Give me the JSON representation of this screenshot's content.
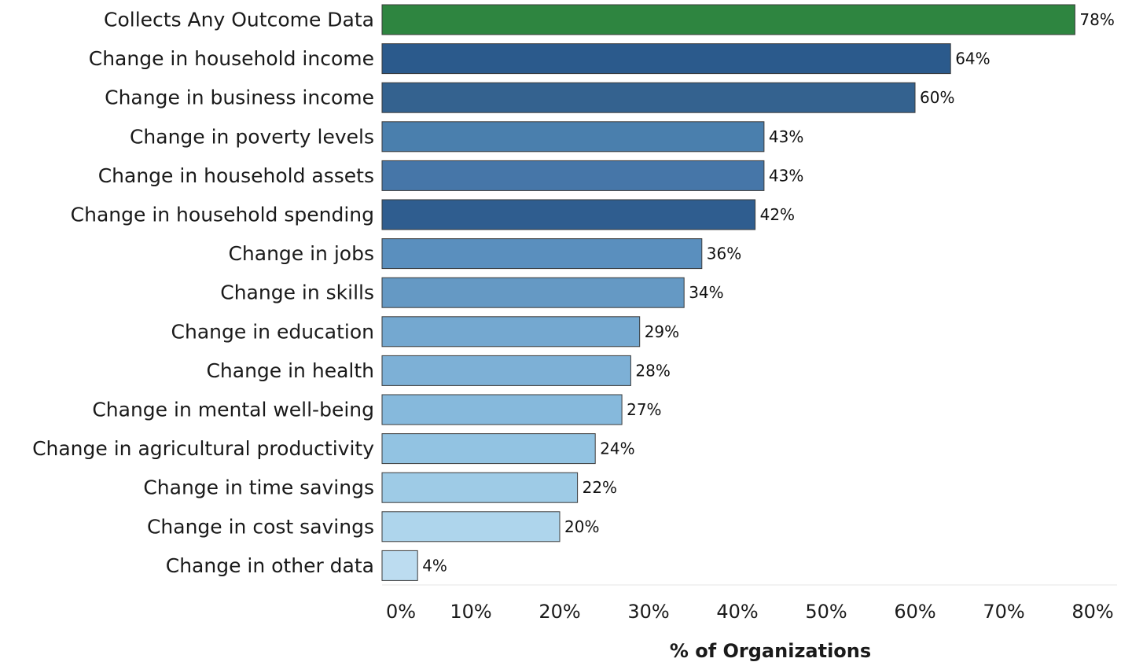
{
  "chart_data": {
    "type": "bar",
    "orientation": "horizontal",
    "title": "",
    "xlabel": "% of Organizations",
    "ylabel": "",
    "xlim": [
      0,
      80
    ],
    "x_ticks": [
      0,
      10,
      20,
      30,
      40,
      50,
      60,
      70,
      80
    ],
    "x_tick_labels": [
      "0%",
      "10%",
      "20%",
      "30%",
      "40%",
      "50%",
      "60%",
      "70%",
      "80%"
    ],
    "grid": false,
    "legend": "none",
    "categories": [
      "Collects Any Outcome Data",
      "Change in household income",
      "Change in business income",
      "Change in poverty levels",
      "Change in household assets",
      "Change in household spending",
      "Change in jobs",
      "Change in skills",
      "Change in education",
      "Change in health",
      "Change in mental well-being",
      "Change in agricultural productivity",
      "Change in time savings",
      "Change in cost savings",
      "Change in other data"
    ],
    "values": [
      78,
      64,
      60,
      43,
      43,
      42,
      36,
      34,
      29,
      28,
      27,
      24,
      22,
      20,
      4
    ],
    "value_labels": [
      "78%",
      "64%",
      "60%",
      "43%",
      "43%",
      "42%",
      "36%",
      "34%",
      "29%",
      "28%",
      "27%",
      "24%",
      "22%",
      "20%",
      "4%"
    ],
    "bar_colors": [
      "#2e8540",
      "#2b5a8c",
      "#34628f",
      "#4a7fad",
      "#4676a8",
      "#2f5d8f",
      "#5a8fbe",
      "#6599c4",
      "#74a8d0",
      "#7db0d6",
      "#86b9dc",
      "#92c3e2",
      "#9ecbe6",
      "#aed5ec",
      "#bcdcf0"
    ],
    "bar_edge_color": "#3a3a3a"
  }
}
